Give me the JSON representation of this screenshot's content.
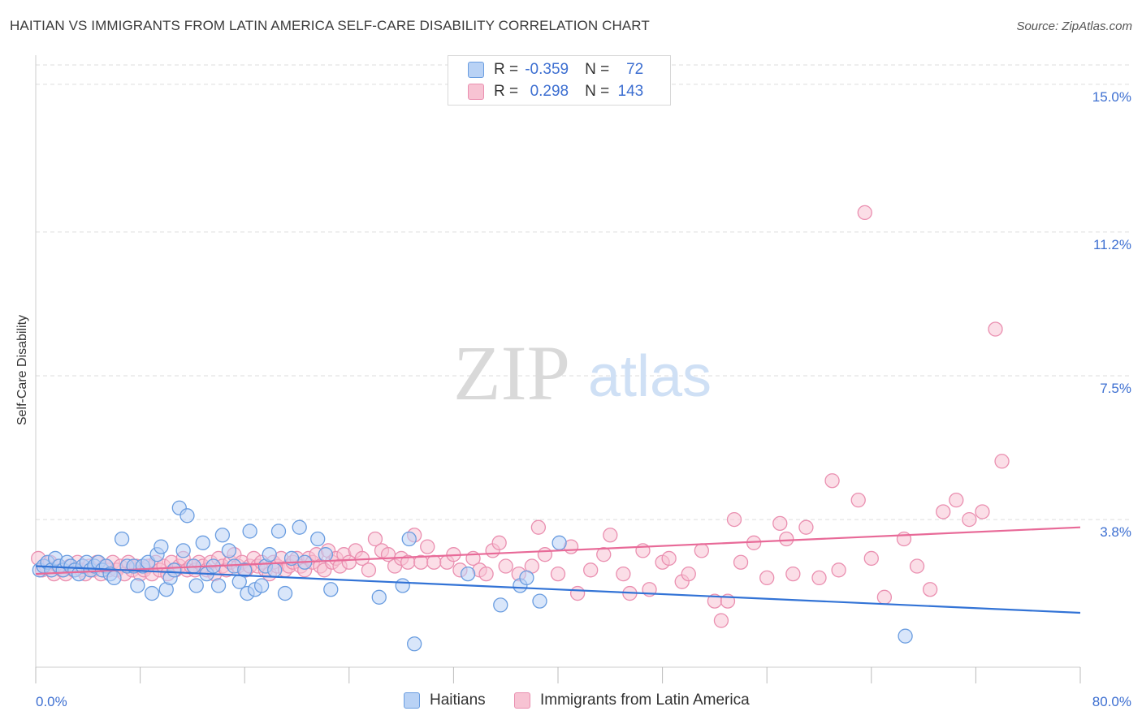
{
  "title": "HAITIAN VS IMMIGRANTS FROM LATIN AMERICA SELF-CARE DISABILITY CORRELATION CHART",
  "source": "Source: ZipAtlas.com",
  "watermark": {
    "zip": "ZIP",
    "atlas": "atlas"
  },
  "legend_top": {
    "rows": [
      {
        "r_label": "R =",
        "r_value": "-0.359",
        "n_label": "N =",
        "n_value": "72"
      },
      {
        "r_label": "R =",
        "r_value": "0.298",
        "n_label": "N =",
        "n_value": "143"
      }
    ]
  },
  "colors": {
    "blue_fill": "#b9d2f5",
    "blue_stroke": "#6a9de0",
    "blue_line": "#3273d6",
    "pink_fill": "#f7c3d3",
    "pink_stroke": "#ea8fb0",
    "pink_line": "#e86a98",
    "tick_text": "#3d6fd1",
    "grid": "#dddddd"
  },
  "chart_data": {
    "type": "scatter",
    "title": "HAITIAN VS IMMIGRANTS FROM LATIN AMERICA SELF-CARE DISABILITY CORRELATION CHART",
    "ylabel": "Self-Care Disability",
    "xlabel": "",
    "xlim": [
      0,
      80
    ],
    "ylim": [
      0,
      15.5
    ],
    "x_tick_labels": [
      "0.0%",
      "80.0%"
    ],
    "y_ticks": [
      3.8,
      7.5,
      11.2,
      15.0
    ],
    "y_tick_labels": [
      "3.8%",
      "7.5%",
      "11.2%",
      "15.0%"
    ],
    "grid": "horizontal dashed",
    "legend_position": "bottom",
    "series": [
      {
        "name": "Haitians",
        "trend": {
          "x": [
            0,
            80
          ],
          "y": [
            2.6,
            1.4
          ]
        },
        "points": [
          [
            0.3,
            2.5
          ],
          [
            0.6,
            2.6
          ],
          [
            0.9,
            2.7
          ],
          [
            1.2,
            2.5
          ],
          [
            1.5,
            2.8
          ],
          [
            1.8,
            2.6
          ],
          [
            2.1,
            2.5
          ],
          [
            2.4,
            2.7
          ],
          [
            2.7,
            2.6
          ],
          [
            3.0,
            2.5
          ],
          [
            3.3,
            2.4
          ],
          [
            3.6,
            2.6
          ],
          [
            3.9,
            2.7
          ],
          [
            4.2,
            2.5
          ],
          [
            4.5,
            2.6
          ],
          [
            4.8,
            2.7
          ],
          [
            5.1,
            2.5
          ],
          [
            5.4,
            2.6
          ],
          [
            5.7,
            2.4
          ],
          [
            6.0,
            2.3
          ],
          [
            6.6,
            3.3
          ],
          [
            7.0,
            2.6
          ],
          [
            7.5,
            2.6
          ],
          [
            7.8,
            2.1
          ],
          [
            8.2,
            2.6
          ],
          [
            8.6,
            2.7
          ],
          [
            8.9,
            1.9
          ],
          [
            9.3,
            2.9
          ],
          [
            9.6,
            3.1
          ],
          [
            10.0,
            2.0
          ],
          [
            10.3,
            2.3
          ],
          [
            10.6,
            2.5
          ],
          [
            11.0,
            4.1
          ],
          [
            11.3,
            3.0
          ],
          [
            11.6,
            3.9
          ],
          [
            12.1,
            2.6
          ],
          [
            12.3,
            2.1
          ],
          [
            12.8,
            3.2
          ],
          [
            13.1,
            2.4
          ],
          [
            13.6,
            2.6
          ],
          [
            14.0,
            2.1
          ],
          [
            14.3,
            3.4
          ],
          [
            14.8,
            3.0
          ],
          [
            15.2,
            2.6
          ],
          [
            15.6,
            2.2
          ],
          [
            16.0,
            2.5
          ],
          [
            16.2,
            1.9
          ],
          [
            16.4,
            3.5
          ],
          [
            16.8,
            2.0
          ],
          [
            17.3,
            2.1
          ],
          [
            17.6,
            2.6
          ],
          [
            17.9,
            2.9
          ],
          [
            18.3,
            2.5
          ],
          [
            18.6,
            3.5
          ],
          [
            19.1,
            1.9
          ],
          [
            19.6,
            2.8
          ],
          [
            20.2,
            3.6
          ],
          [
            20.6,
            2.7
          ],
          [
            21.6,
            3.3
          ],
          [
            22.2,
            2.9
          ],
          [
            22.6,
            2.0
          ],
          [
            26.3,
            1.8
          ],
          [
            28.1,
            2.1
          ],
          [
            28.6,
            3.3
          ],
          [
            29.0,
            0.6
          ],
          [
            33.1,
            2.4
          ],
          [
            35.6,
            1.6
          ],
          [
            37.1,
            2.1
          ],
          [
            37.6,
            2.3
          ],
          [
            38.6,
            1.7
          ],
          [
            40.1,
            3.2
          ],
          [
            66.6,
            0.8
          ]
        ]
      },
      {
        "name": "Immigrants from Latin America",
        "trend": {
          "x": [
            0,
            80
          ],
          "y": [
            2.4,
            3.6
          ]
        },
        "points": [
          [
            0.2,
            2.8
          ],
          [
            0.5,
            2.5
          ],
          [
            0.8,
            2.6
          ],
          [
            1.1,
            2.7
          ],
          [
            1.4,
            2.4
          ],
          [
            1.7,
            2.6
          ],
          [
            2.0,
            2.5
          ],
          [
            2.3,
            2.4
          ],
          [
            2.6,
            2.6
          ],
          [
            2.9,
            2.5
          ],
          [
            3.2,
            2.7
          ],
          [
            3.5,
            2.5
          ],
          [
            3.8,
            2.4
          ],
          [
            4.1,
            2.6
          ],
          [
            4.4,
            2.5
          ],
          [
            4.7,
            2.7
          ],
          [
            5.0,
            2.4
          ],
          [
            5.3,
            2.6
          ],
          [
            5.6,
            2.5
          ],
          [
            5.9,
            2.7
          ],
          [
            6.2,
            2.5
          ],
          [
            6.5,
            2.6
          ],
          [
            6.8,
            2.4
          ],
          [
            7.1,
            2.7
          ],
          [
            7.4,
            2.5
          ],
          [
            7.7,
            2.6
          ],
          [
            8.0,
            2.4
          ],
          [
            8.3,
            2.5
          ],
          [
            8.6,
            2.6
          ],
          [
            8.9,
            2.4
          ],
          [
            9.2,
            2.7
          ],
          [
            9.5,
            2.5
          ],
          [
            9.8,
            2.6
          ],
          [
            10.1,
            2.4
          ],
          [
            10.4,
            2.7
          ],
          [
            10.7,
            2.5
          ],
          [
            11.0,
            2.6
          ],
          [
            11.3,
            2.8
          ],
          [
            11.6,
            2.5
          ],
          [
            11.9,
            2.6
          ],
          [
            12.2,
            2.5
          ],
          [
            12.5,
            2.7
          ],
          [
            12.8,
            2.6
          ],
          [
            13.1,
            2.5
          ],
          [
            13.4,
            2.7
          ],
          [
            13.7,
            2.4
          ],
          [
            14.0,
            2.8
          ],
          [
            14.3,
            2.6
          ],
          [
            14.6,
            2.5
          ],
          [
            14.9,
            2.7
          ],
          [
            15.2,
            2.9
          ],
          [
            15.5,
            2.6
          ],
          [
            15.8,
            2.7
          ],
          [
            16.1,
            2.5
          ],
          [
            16.4,
            2.6
          ],
          [
            16.7,
            2.8
          ],
          [
            17.0,
            2.6
          ],
          [
            17.3,
            2.7
          ],
          [
            17.6,
            2.5
          ],
          [
            17.9,
            2.4
          ],
          [
            18.2,
            2.7
          ],
          [
            18.5,
            2.6
          ],
          [
            18.8,
            2.8
          ],
          [
            19.1,
            2.5
          ],
          [
            19.4,
            2.6
          ],
          [
            19.7,
            2.7
          ],
          [
            20.0,
            2.8
          ],
          [
            20.3,
            2.6
          ],
          [
            20.6,
            2.5
          ],
          [
            20.9,
            2.8
          ],
          [
            21.2,
            2.7
          ],
          [
            21.5,
            2.9
          ],
          [
            21.8,
            2.6
          ],
          [
            22.1,
            2.5
          ],
          [
            22.4,
            3.0
          ],
          [
            22.7,
            2.7
          ],
          [
            23.0,
            2.8
          ],
          [
            23.3,
            2.6
          ],
          [
            23.6,
            2.9
          ],
          [
            24.0,
            2.7
          ],
          [
            24.5,
            3.0
          ],
          [
            25.0,
            2.8
          ],
          [
            25.5,
            2.5
          ],
          [
            26.0,
            3.3
          ],
          [
            26.5,
            3.0
          ],
          [
            27.0,
            2.9
          ],
          [
            27.5,
            2.6
          ],
          [
            28.0,
            2.8
          ],
          [
            28.5,
            2.7
          ],
          [
            29.0,
            3.4
          ],
          [
            29.5,
            2.7
          ],
          [
            30.0,
            3.1
          ],
          [
            30.5,
            2.7
          ],
          [
            31.5,
            2.7
          ],
          [
            32.0,
            2.9
          ],
          [
            32.5,
            2.5
          ],
          [
            33.5,
            2.8
          ],
          [
            34.0,
            2.5
          ],
          [
            34.5,
            2.4
          ],
          [
            35.0,
            3.0
          ],
          [
            35.5,
            3.2
          ],
          [
            36.0,
            2.6
          ],
          [
            37.0,
            2.4
          ],
          [
            38.0,
            2.6
          ],
          [
            38.5,
            3.6
          ],
          [
            39.0,
            2.9
          ],
          [
            40.0,
            2.4
          ],
          [
            41.0,
            3.1
          ],
          [
            41.5,
            1.9
          ],
          [
            42.5,
            2.5
          ],
          [
            43.5,
            2.9
          ],
          [
            44.0,
            3.4
          ],
          [
            45.0,
            2.4
          ],
          [
            45.5,
            1.9
          ],
          [
            46.5,
            3.0
          ],
          [
            47.0,
            2.0
          ],
          [
            48.0,
            2.7
          ],
          [
            48.5,
            2.8
          ],
          [
            49.5,
            2.2
          ],
          [
            50.0,
            2.4
          ],
          [
            51.0,
            3.0
          ],
          [
            52.0,
            1.7
          ],
          [
            52.5,
            1.2
          ],
          [
            53.0,
            1.7
          ],
          [
            53.5,
            3.8
          ],
          [
            54.0,
            2.7
          ],
          [
            55.0,
            3.2
          ],
          [
            56.0,
            2.3
          ],
          [
            57.0,
            3.7
          ],
          [
            57.5,
            3.3
          ],
          [
            58.0,
            2.4
          ],
          [
            59.0,
            3.6
          ],
          [
            60.0,
            2.3
          ],
          [
            61.0,
            4.8
          ],
          [
            61.5,
            2.5
          ],
          [
            63.0,
            4.3
          ],
          [
            63.5,
            11.7
          ],
          [
            64.0,
            2.8
          ],
          [
            65.0,
            1.8
          ],
          [
            66.5,
            3.3
          ],
          [
            67.5,
            2.6
          ],
          [
            68.5,
            2.0
          ],
          [
            69.5,
            4.0
          ],
          [
            70.5,
            4.3
          ],
          [
            71.5,
            3.8
          ],
          [
            72.5,
            4.0
          ],
          [
            73.5,
            8.7
          ],
          [
            74.0,
            5.3
          ]
        ]
      }
    ]
  },
  "bottom_legend": [
    "Haitians",
    "Immigrants from Latin America"
  ]
}
